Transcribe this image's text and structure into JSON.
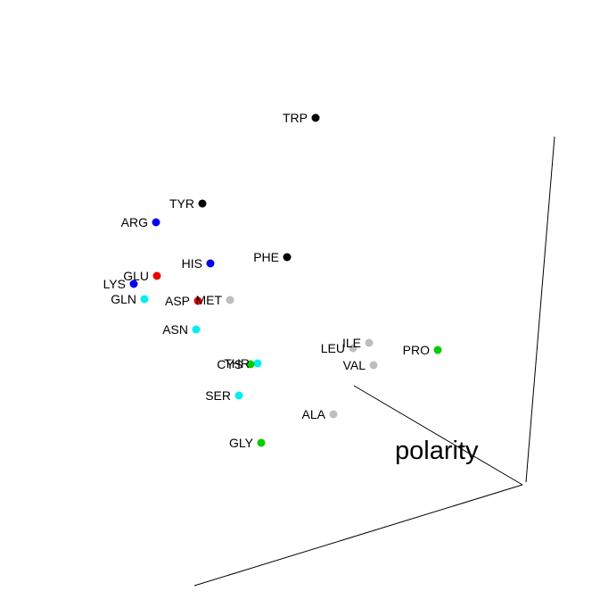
{
  "chart_data": {
    "type": "scatter",
    "projection": "3d",
    "axis_title": "polarity",
    "colors": {
      "black": "#000000",
      "blue": "#0000ee",
      "red": "#ee0000",
      "cyan": "#00eeee",
      "gray": "#bebebe",
      "green": "#00cd00"
    },
    "points": [
      {
        "label": "TRP",
        "color": "#000000"
      },
      {
        "label": "TYR",
        "color": "#000000"
      },
      {
        "label": "ARG",
        "color": "#0000ee"
      },
      {
        "label": "HIS",
        "color": "#0000ee"
      },
      {
        "label": "PHE",
        "color": "#000000"
      },
      {
        "label": "GLU",
        "color": "#ee0000"
      },
      {
        "label": "LYS",
        "color": "#0000ee"
      },
      {
        "label": "GLN",
        "color": "#00eeee"
      },
      {
        "label": "ASP",
        "color": "#ee0000"
      },
      {
        "label": "MET",
        "color": "#bebebe"
      },
      {
        "label": "ASN",
        "color": "#00eeee"
      },
      {
        "label": "LEU",
        "color": "#bebebe"
      },
      {
        "label": "ILE",
        "color": "#bebebe"
      },
      {
        "label": "PRO",
        "color": "#00cd00"
      },
      {
        "label": "VAL",
        "color": "#bebebe"
      },
      {
        "label": "THR",
        "color": "#00eeee"
      },
      {
        "label": "CYS",
        "color": "#00cd00"
      },
      {
        "label": "SER",
        "color": "#00eeee"
      },
      {
        "label": "ALA",
        "color": "#bebebe"
      },
      {
        "label": "GLY",
        "color": "#00cd00"
      }
    ]
  }
}
